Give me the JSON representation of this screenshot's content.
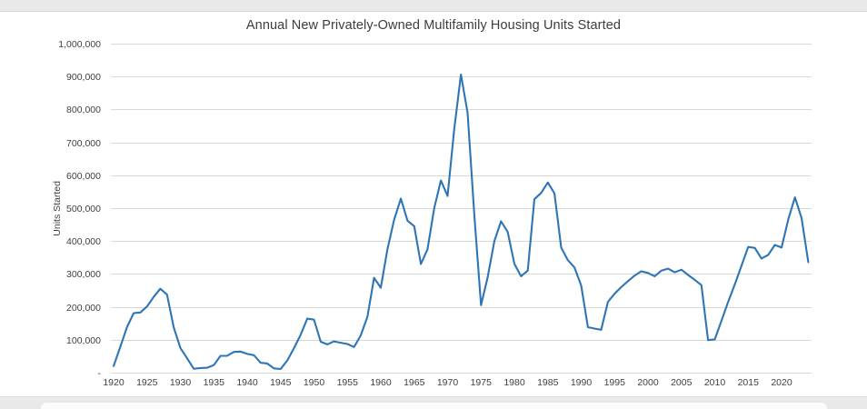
{
  "chart": {
    "title": "Annual New Privately-Owned Multifamily Housing Units Started",
    "y_axis_title": "Units Started"
  },
  "chart_data": {
    "type": "line",
    "title": "Annual New Privately-Owned Multifamily Housing Units Started",
    "xlabel": "",
    "ylabel": "Units Started",
    "ylim": [
      0,
      1000000
    ],
    "grid": true,
    "legend": "none",
    "line_color": "#2E75B6",
    "gridline_color": "#D9D9D9",
    "axis_text_color": "#404040",
    "x_tick_labels": [
      "1920",
      "1925",
      "1930",
      "1935",
      "1940",
      "1945",
      "1950",
      "1955",
      "1960",
      "1965",
      "1970",
      "1975",
      "1980",
      "1985",
      "1990",
      "1995",
      "2000",
      "2005",
      "2010",
      "2015",
      "2020"
    ],
    "y_ticks": [
      {
        "label": "1,000,000",
        "value": 1000000
      },
      {
        "label": "900,000",
        "value": 900000
      },
      {
        "label": "800,000",
        "value": 800000
      },
      {
        "label": "700,000",
        "value": 700000
      },
      {
        "label": "600,000",
        "value": 600000
      },
      {
        "label": "500,000",
        "value": 500000
      },
      {
        "label": "400,000",
        "value": 400000
      },
      {
        "label": "300,000",
        "value": 300000
      },
      {
        "label": "200,000",
        "value": 200000
      },
      {
        "label": "100,000",
        "value": 100000
      },
      {
        "label": "-",
        "value": 0
      }
    ],
    "series": [
      {
        "name": "Units Started",
        "start_year": 1920,
        "end_year": 2024,
        "values": [
          20000,
          78000,
          138000,
          181000,
          183000,
          201000,
          230000,
          255000,
          237000,
          138000,
          75000,
          44000,
          12000,
          14000,
          15000,
          23000,
          51000,
          51000,
          63000,
          64000,
          57000,
          53000,
          30000,
          28000,
          13000,
          11000,
          37000,
          74000,
          115000,
          164000,
          161000,
          94000,
          86000,
          95000,
          91000,
          87000,
          78000,
          113000,
          170000,
          288000,
          258000,
          375000,
          465000,
          529000,
          462000,
          445000,
          330000,
          375000,
          500000,
          584000,
          537000,
          740000,
          906000,
          790000,
          480000,
          205000,
          290000,
          400000,
          460000,
          428000,
          331000,
          293000,
          310000,
          527000,
          546000,
          578000,
          545000,
          380000,
          342000,
          320000,
          265000,
          138000,
          134000,
          130000,
          215000,
          240000,
          260000,
          278000,
          295000,
          308000,
          303000,
          293000,
          310000,
          316000,
          305000,
          313000,
          297000,
          282000,
          266000,
          99000,
          101000,
          158000,
          215000,
          268000,
          325000,
          382000,
          379000,
          347000,
          358000,
          388000,
          380000,
          465000,
          533000,
          470000,
          336000
        ]
      }
    ]
  }
}
